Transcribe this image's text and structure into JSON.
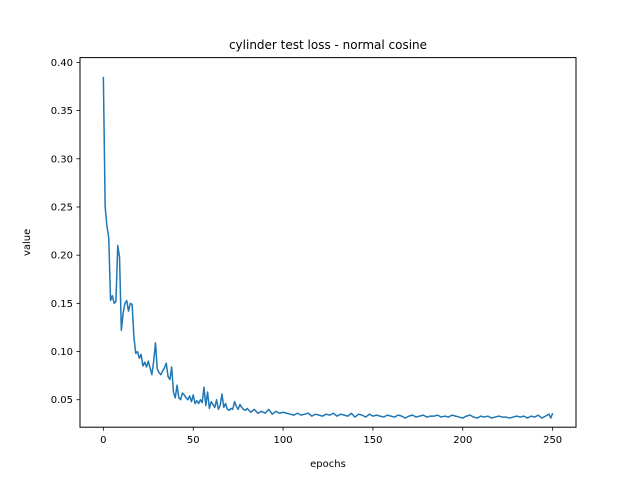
{
  "chart_data": {
    "type": "line",
    "title": "cylinder test loss - normal cosine",
    "xlabel": "epochs",
    "ylabel": "value",
    "xlim": [
      -13,
      263
    ],
    "ylim": [
      0.0215,
      0.405
    ],
    "xticks": [
      0,
      50,
      100,
      150,
      200,
      250
    ],
    "xtick_labels": [
      "0",
      "50",
      "100",
      "150",
      "200",
      "250"
    ],
    "yticks": [
      0.05,
      0.1,
      0.15,
      0.2,
      0.25,
      0.3,
      0.35,
      0.4
    ],
    "ytick_labels": [
      "0.05",
      "0.10",
      "0.15",
      "0.20",
      "0.25",
      "0.30",
      "0.35",
      "0.40"
    ],
    "grid": false,
    "legend": "none",
    "colors": {
      "line": "#1f77b4",
      "axes": "#000000",
      "background": "#ffffff"
    },
    "series": [
      {
        "x": [
          0,
          1,
          2,
          3,
          4,
          5,
          6,
          7,
          8,
          9,
          10,
          11,
          12,
          13,
          14,
          15,
          16,
          17,
          18,
          19,
          20,
          21,
          22,
          23,
          24,
          25,
          26,
          27,
          28,
          29,
          30,
          31,
          32,
          33,
          34,
          35,
          36,
          37,
          38,
          39,
          40,
          41,
          42,
          43,
          44,
          45,
          46,
          47,
          48,
          49,
          50,
          51,
          52,
          53,
          54,
          55,
          56,
          57,
          58,
          59,
          60,
          61,
          62,
          63,
          64,
          65,
          66,
          67,
          68,
          69,
          70,
          71,
          72,
          73,
          74,
          75,
          76,
          77,
          78,
          79,
          80,
          82,
          84,
          86,
          88,
          90,
          92,
          94,
          96,
          98,
          100,
          102,
          104,
          106,
          108,
          110,
          112,
          114,
          116,
          118,
          120,
          122,
          124,
          126,
          128,
          130,
          132,
          134,
          136,
          138,
          140,
          142,
          144,
          146,
          148,
          150,
          152,
          154,
          156,
          158,
          160,
          162,
          164,
          166,
          168,
          170,
          172,
          174,
          176,
          178,
          180,
          182,
          184,
          186,
          188,
          190,
          192,
          194,
          196,
          198,
          200,
          202,
          204,
          206,
          208,
          210,
          212,
          214,
          216,
          218,
          220,
          222,
          224,
          226,
          228,
          230,
          232,
          234,
          236,
          238,
          240,
          242,
          244,
          246,
          248,
          249,
          250
        ],
        "y": [
          0.385,
          0.25,
          0.23,
          0.218,
          0.153,
          0.158,
          0.15,
          0.152,
          0.21,
          0.198,
          0.122,
          0.14,
          0.15,
          0.153,
          0.142,
          0.15,
          0.149,
          0.115,
          0.098,
          0.1,
          0.093,
          0.097,
          0.085,
          0.089,
          0.084,
          0.09,
          0.083,
          0.076,
          0.09,
          0.109,
          0.082,
          0.078,
          0.076,
          0.08,
          0.083,
          0.088,
          0.074,
          0.071,
          0.084,
          0.058,
          0.052,
          0.065,
          0.052,
          0.05,
          0.057,
          0.055,
          0.052,
          0.05,
          0.054,
          0.048,
          0.055,
          0.046,
          0.049,
          0.046,
          0.05,
          0.047,
          0.063,
          0.044,
          0.058,
          0.041,
          0.048,
          0.045,
          0.042,
          0.05,
          0.04,
          0.044,
          0.056,
          0.042,
          0.046,
          0.04,
          0.039,
          0.041,
          0.04,
          0.048,
          0.043,
          0.04,
          0.045,
          0.042,
          0.04,
          0.039,
          0.041,
          0.037,
          0.04,
          0.036,
          0.038,
          0.036,
          0.04,
          0.035,
          0.038,
          0.036,
          0.037,
          0.036,
          0.035,
          0.034,
          0.036,
          0.034,
          0.035,
          0.036,
          0.033,
          0.035,
          0.034,
          0.033,
          0.035,
          0.034,
          0.036,
          0.033,
          0.035,
          0.034,
          0.033,
          0.036,
          0.032,
          0.035,
          0.034,
          0.032,
          0.035,
          0.033,
          0.034,
          0.033,
          0.032,
          0.034,
          0.033,
          0.032,
          0.034,
          0.033,
          0.031,
          0.033,
          0.034,
          0.032,
          0.033,
          0.034,
          0.032,
          0.033,
          0.033,
          0.034,
          0.032,
          0.033,
          0.032,
          0.034,
          0.033,
          0.032,
          0.031,
          0.033,
          0.034,
          0.032,
          0.031,
          0.033,
          0.032,
          0.033,
          0.031,
          0.032,
          0.033,
          0.032,
          0.032,
          0.031,
          0.032,
          0.033,
          0.032,
          0.033,
          0.031,
          0.033,
          0.032,
          0.034,
          0.031,
          0.033,
          0.035,
          0.031,
          0.036
        ]
      }
    ]
  }
}
